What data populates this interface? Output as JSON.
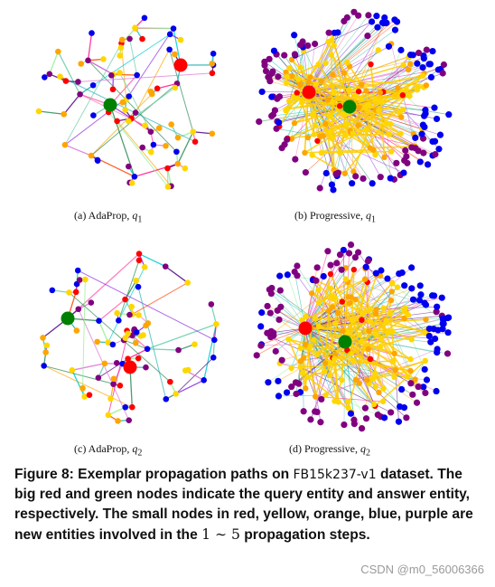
{
  "subfigures": [
    {
      "id": "a",
      "prefix": "(a)",
      "method": "AdaProp,",
      "query": "q",
      "sub": "1"
    },
    {
      "id": "b",
      "prefix": "(b)",
      "method": "Progressive,",
      "query": "q",
      "sub": "1"
    },
    {
      "id": "c",
      "prefix": "(c)",
      "method": "AdaProp,",
      "query": "q",
      "sub": "2"
    },
    {
      "id": "d",
      "prefix": "(d)",
      "method": "Progressive,",
      "query": "q",
      "sub": "2"
    }
  ],
  "caption": {
    "part1": "Figure 8: Exemplar propagation paths on ",
    "dataset": "FB15k237-v1",
    "part2": " dataset. The big red and green nodes indicate the query entity and answer entity, respectively. The small nodes in red, yellow, orange, blue, purple are new entities involved in the ",
    "range": "1 ∼ 5",
    "part3": " propagation steps."
  },
  "watermark": "CSDN @m0_56006366",
  "colors": {
    "step1": "#ff0000",
    "step2": "#ffd700",
    "step3": "#ffa500",
    "step4": "#0000ee",
    "step5": "#800080",
    "query": "#ff0000",
    "answer": "#008000"
  }
}
